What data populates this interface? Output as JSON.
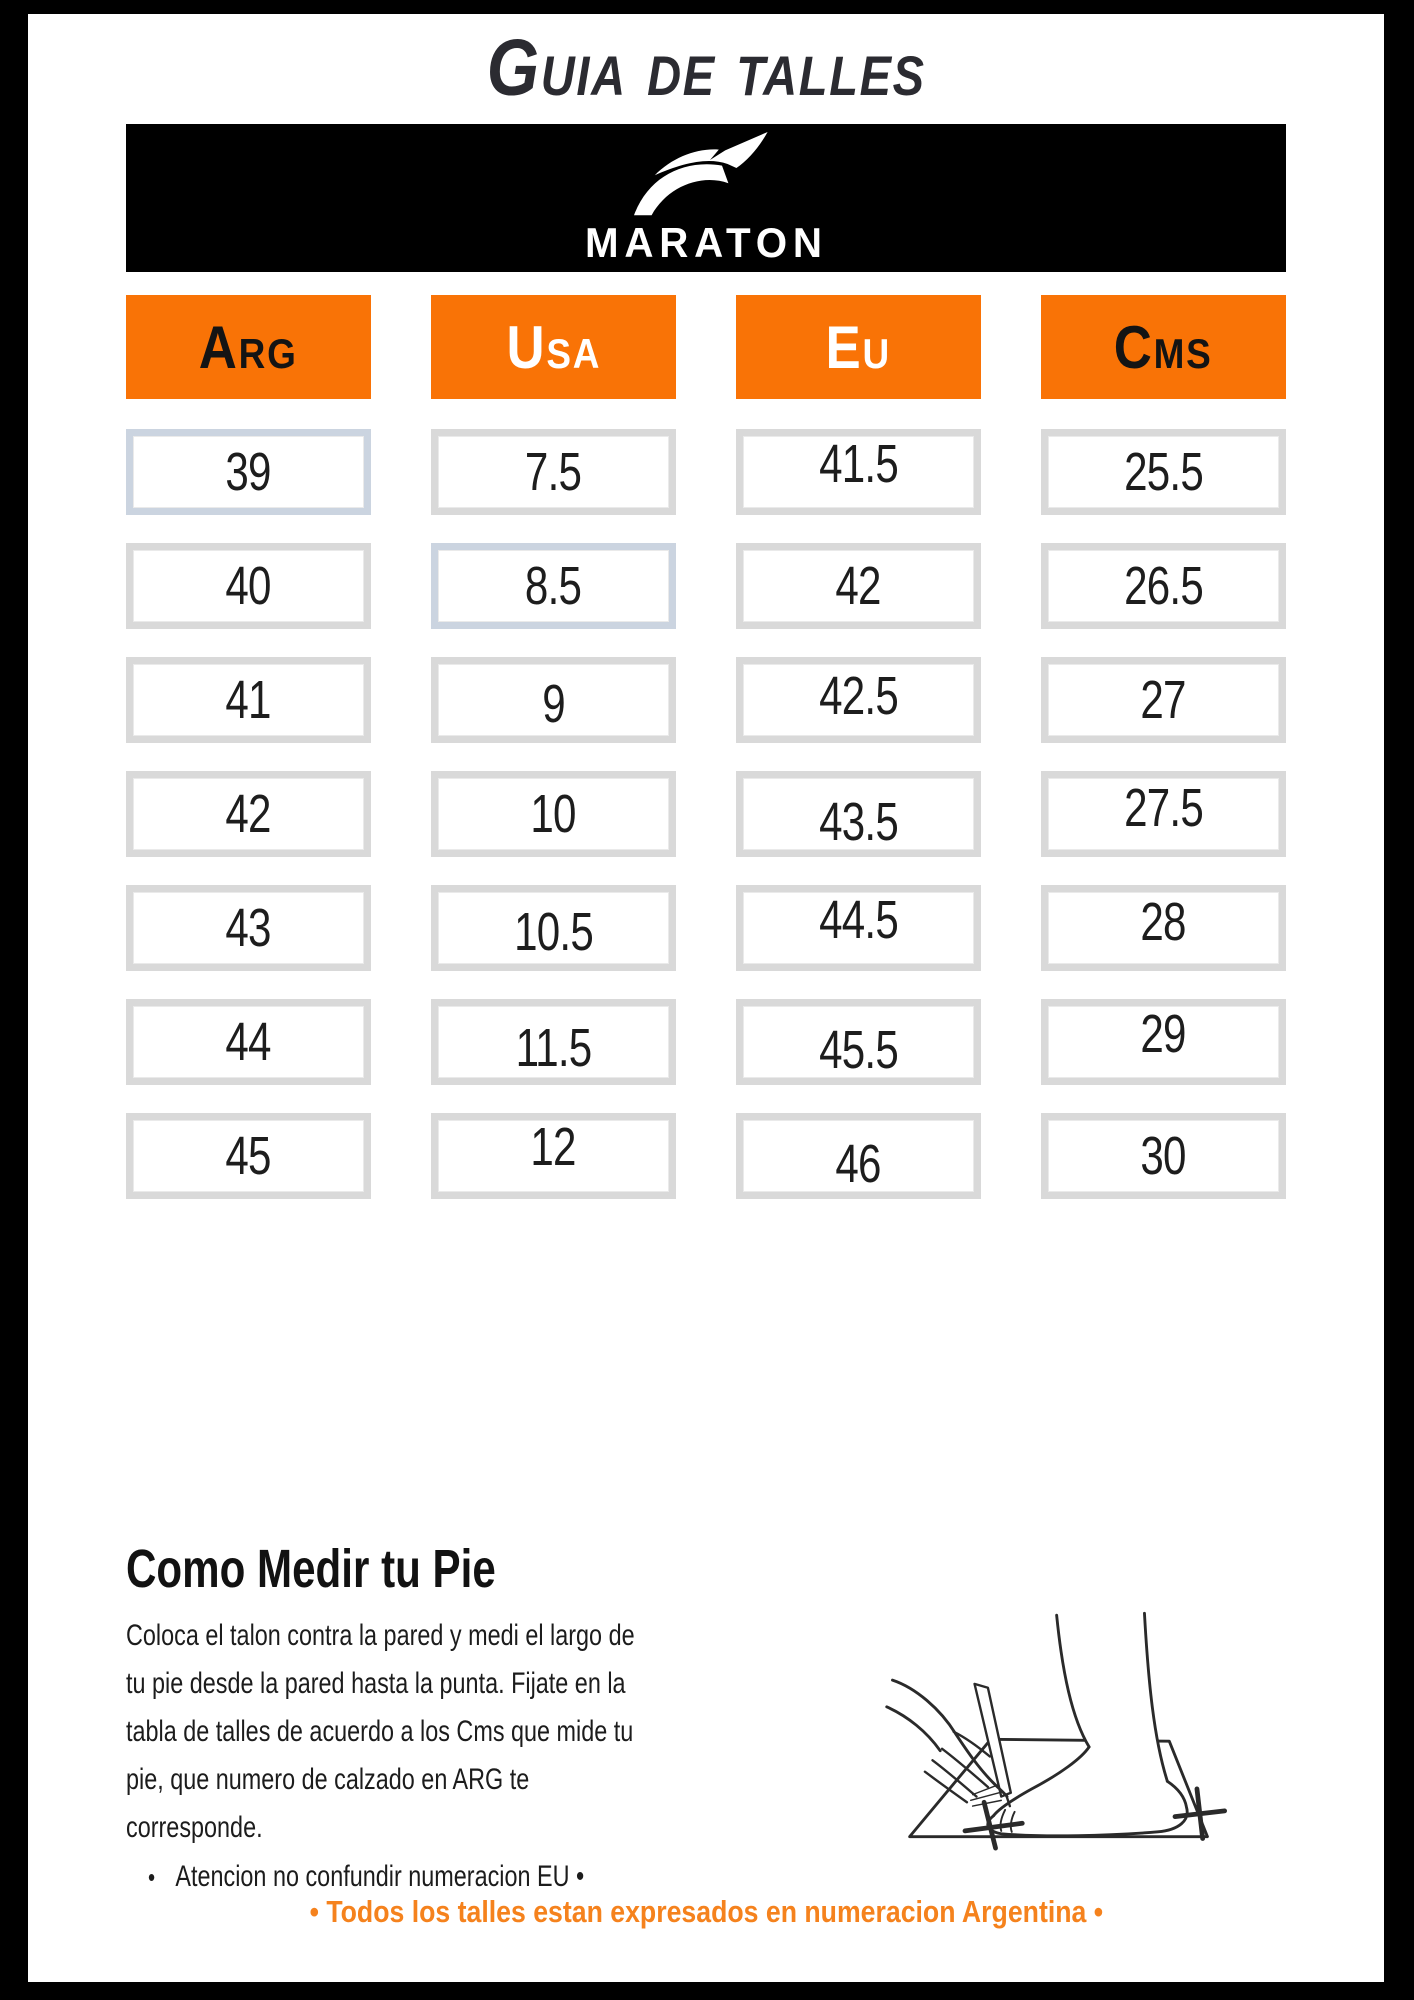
{
  "page": {
    "title": "Guia de talles"
  },
  "brand": {
    "name": "MARATON",
    "logo_icon": "bird-swoosh-icon"
  },
  "size_table": {
    "columns": [
      {
        "label": "Arg",
        "label_color": "#141414"
      },
      {
        "label": "Usa",
        "label_color": "#ffffff"
      },
      {
        "label": "Eu",
        "label_color": "#ffffff"
      },
      {
        "label": "Cms",
        "label_color": "#141414"
      }
    ],
    "rows": [
      [
        "39",
        "7.5",
        "41.5",
        "25.5"
      ],
      [
        "40",
        "8.5",
        "42",
        "26.5"
      ],
      [
        "41",
        "9",
        "42.5",
        "27"
      ],
      [
        "42",
        "10",
        "43.5",
        "27.5"
      ],
      [
        "43",
        "10.5",
        "44.5",
        "28"
      ],
      [
        "44",
        "11.5",
        "45.5",
        "29"
      ],
      [
        "45",
        "12",
        "46",
        "30"
      ]
    ],
    "highlighted_cells": [
      {
        "row": 0,
        "col": 0
      },
      {
        "row": 1,
        "col": 1
      }
    ]
  },
  "measure_section": {
    "heading": "Como Medir tu Pie",
    "body": "Coloca el talon contra la pared y medi el largo de tu pie desde la pared hasta la punta. Fijate en la tabla de talles de acuerdo a los Cms que mide tu pie, que numero de calzado en ARG te corresponde.",
    "bullet_dot": "•",
    "bullet": "Atencion no confundir numeracion EU •",
    "illustration": "foot-measure-drawing"
  },
  "footer": {
    "note": "• Todos los talles estan expresados en numeracion Argentina •"
  },
  "colors": {
    "accent_orange": "#f97306",
    "footer_orange": "#f5821d",
    "frame_gray": "#d9d9d9",
    "frame_highlight_blue": "#cbd4e0",
    "banner_black": "#000000"
  }
}
